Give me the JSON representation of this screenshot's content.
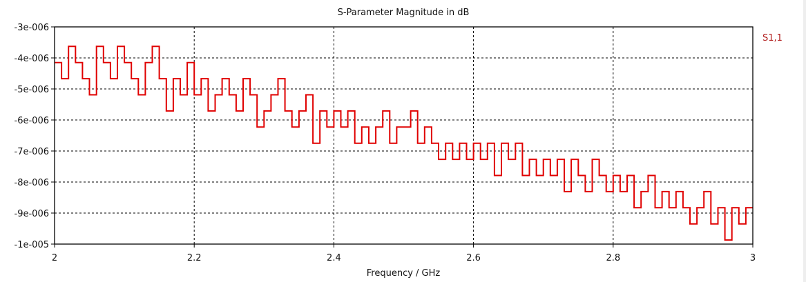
{
  "chart_data": {
    "type": "line",
    "title": "S-Parameter Magnitude in dB",
    "xlabel": "Frequency / GHz",
    "ylabel": "",
    "xlim": [
      2,
      3
    ],
    "ylim": [
      -1e-05,
      -3e-06
    ],
    "grid": true,
    "x_ticks": [
      2,
      2.2,
      2.4,
      2.6,
      2.8,
      3
    ],
    "x_tick_labels": [
      "2",
      "2.2",
      "2.4",
      "2.6",
      "2.8",
      "3"
    ],
    "y_ticks": [
      -3e-06,
      -4e-06,
      -5e-06,
      -6e-06,
      -7e-06,
      -8e-06,
      -9e-06,
      -1e-05
    ],
    "y_tick_labels": [
      "-3e-006",
      "-4e-006",
      "-5e-006",
      "-6e-006",
      "-7e-006",
      "-8e-006",
      "-9e-006",
      "-1e-005"
    ],
    "legend": {
      "placement": "top-right",
      "entries": [
        "S1,1"
      ]
    },
    "series": [
      {
        "name": "S1,1",
        "color": "#e00000",
        "step": "steps",
        "x_start": 2.0,
        "x_step": 0.01,
        "y_unit_scale": 1e-06,
        "values": [
          -4.15,
          -4.67,
          -3.63,
          -4.15,
          -4.67,
          -5.19,
          -3.63,
          -4.15,
          -4.67,
          -3.63,
          -4.15,
          -4.67,
          -5.19,
          -4.15,
          -3.63,
          -4.67,
          -5.71,
          -4.67,
          -5.19,
          -4.15,
          -5.19,
          -4.67,
          -5.71,
          -5.19,
          -4.67,
          -5.19,
          -5.71,
          -4.67,
          -5.19,
          -6.23,
          -5.71,
          -5.19,
          -4.67,
          -5.71,
          -6.23,
          -5.71,
          -5.19,
          -6.75,
          -5.71,
          -6.23,
          -5.71,
          -6.23,
          -5.71,
          -6.75,
          -6.23,
          -6.75,
          -6.23,
          -5.71,
          -6.75,
          -6.23,
          -6.23,
          -5.71,
          -6.75,
          -6.23,
          -6.75,
          -7.27,
          -6.75,
          -7.27,
          -6.75,
          -7.27,
          -6.75,
          -7.27,
          -6.75,
          -7.79,
          -6.75,
          -7.27,
          -6.75,
          -7.79,
          -7.27,
          -7.79,
          -7.27,
          -7.79,
          -7.27,
          -8.31,
          -7.27,
          -7.79,
          -8.31,
          -7.27,
          -7.79,
          -8.31,
          -7.79,
          -8.31,
          -7.79,
          -8.83,
          -8.31,
          -7.79,
          -8.83,
          -8.31,
          -8.83,
          -8.31,
          -8.83,
          -9.35,
          -8.83,
          -8.31,
          -9.35,
          -8.83,
          -9.87,
          -8.83,
          -9.35,
          -8.83,
          -8.83
        ]
      }
    ]
  }
}
